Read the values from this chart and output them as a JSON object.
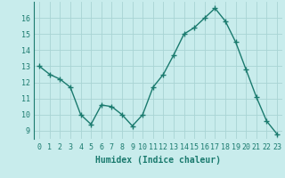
{
  "x": [
    0,
    1,
    2,
    3,
    4,
    5,
    6,
    7,
    8,
    9,
    10,
    11,
    12,
    13,
    14,
    15,
    16,
    17,
    18,
    19,
    20,
    21,
    22,
    23
  ],
  "y": [
    13.0,
    12.5,
    12.2,
    11.7,
    10.0,
    9.4,
    10.6,
    10.5,
    10.0,
    9.3,
    10.0,
    11.7,
    12.5,
    13.7,
    15.0,
    15.4,
    16.0,
    16.6,
    15.8,
    14.5,
    12.8,
    11.1,
    9.6,
    8.8
  ],
  "line_color": "#1a7a6e",
  "marker": "+",
  "marker_size": 4,
  "bg_color": "#c8ecec",
  "grid_color": "#a8d4d4",
  "xlabel": "Humidex (Indice chaleur)",
  "ylim": [
    8.5,
    17.0
  ],
  "xlim": [
    -0.5,
    23.5
  ],
  "yticks": [
    9,
    10,
    11,
    12,
    13,
    14,
    15,
    16
  ],
  "xticks": [
    0,
    1,
    2,
    3,
    4,
    5,
    6,
    7,
    8,
    9,
    10,
    11,
    12,
    13,
    14,
    15,
    16,
    17,
    18,
    19,
    20,
    21,
    22,
    23
  ],
  "tick_fontsize": 6,
  "xlabel_fontsize": 7,
  "line_width": 1.0
}
